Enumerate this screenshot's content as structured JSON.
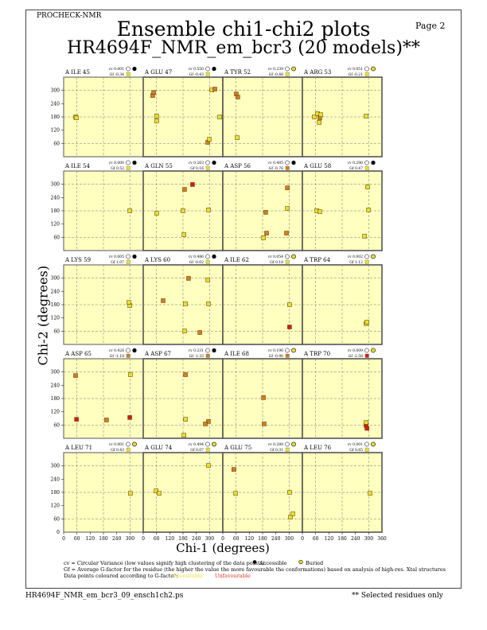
{
  "header": {
    "program": "PROCHECK-NMR",
    "page": "Page  2",
    "title": "Ensemble chi1-chi2 plots",
    "subtitle": "HR4694F_NMR_em_bcr3 (20 models)**"
  },
  "colors": {
    "panel_bg": "#ffffc0",
    "favourable": "#e8e030",
    "intermediate": "#d08020",
    "unfavourable": "#d02010",
    "grid": "#777777"
  },
  "chart_data": {
    "type": "scatter",
    "xlabel": "Chi-1 (degrees)",
    "ylabel": "Chi-2 (degrees)",
    "xlim": [
      0,
      360
    ],
    "ylim": [
      0,
      360
    ],
    "x_ticks": [
      0,
      60,
      120,
      180,
      240,
      300
    ],
    "x_tick_last": 360,
    "y_ticks": [
      60,
      120,
      180,
      240,
      300
    ],
    "y_tick_zero": 0,
    "grid": true,
    "panels": [
      {
        "label": "A ILE 45",
        "cv": "cv 0.001",
        "gf": "Gf -0.34",
        "gf_color": "y",
        "access": "acc",
        "pts": [
          [
            54,
            180,
            "y"
          ],
          [
            58,
            176,
            "y"
          ]
        ]
      },
      {
        "label": "A GLU 47",
        "cv": "cv 0.550",
        "gf": "Gf -0.43",
        "gf_color": "y",
        "access": "acc",
        "pts": [
          [
            43,
            277,
            "o"
          ],
          [
            47,
            291,
            "o"
          ],
          [
            61,
            184,
            "y"
          ],
          [
            61,
            162,
            "y"
          ],
          [
            310,
            302,
            "y"
          ],
          [
            324,
            306,
            "o"
          ],
          [
            346,
            180,
            "y"
          ],
          [
            292,
            65,
            "o"
          ],
          [
            299,
            79,
            "y"
          ]
        ]
      },
      {
        "label": "A TYR 52",
        "cv": "cv 0.239",
        "gf": "Gf -0.48",
        "gf_color": "y",
        "access": "bur",
        "pts": [
          [
            61,
            284,
            "o"
          ],
          [
            68,
            270,
            "o"
          ],
          [
            65,
            86,
            "y"
          ]
        ]
      },
      {
        "label": "A ARG 53",
        "cv": "cv 0.051",
        "gf": "Gf -0.21",
        "gf_color": "y",
        "access": "bur",
        "pts": [
          [
            54,
            180,
            "y"
          ],
          [
            68,
            195,
            "y"
          ],
          [
            79,
            176,
            "o"
          ],
          [
            76,
            155,
            "y"
          ],
          [
            83,
            190,
            "y"
          ],
          [
            288,
            184,
            "y"
          ]
        ]
      },
      {
        "label": "A ILE 54",
        "cv": "cv 0.000",
        "gf": "Gf 0.52",
        "gf_color": "y",
        "access": "acc",
        "pts": [
          [
            299,
            180,
            "y"
          ]
        ]
      },
      {
        "label": "A GLN 55",
        "cv": "cv 0.263",
        "gf": "Gf 0.16",
        "gf_color": "y",
        "access": "acc",
        "pts": [
          [
            61,
            169,
            "y"
          ],
          [
            180,
            180,
            "y"
          ],
          [
            187,
            277,
            "o"
          ],
          [
            223,
            299,
            "r"
          ],
          [
            295,
            184,
            "y"
          ],
          [
            184,
            72,
            "y"
          ]
        ]
      },
      {
        "label": "A ASP 56",
        "cv": "cv 0.485",
        "gf": "Gf -0.76",
        "gf_color": "o",
        "access": "acc",
        "pts": [
          [
            194,
            173,
            "o"
          ],
          [
            184,
            58,
            "y"
          ],
          [
            198,
            79,
            "o"
          ],
          [
            292,
            284,
            "o"
          ],
          [
            292,
            191,
            "y"
          ],
          [
            288,
            79,
            "o"
          ]
        ]
      },
      {
        "label": "A GLU 58",
        "cv": "cv 0.290",
        "gf": "Gf 0.47",
        "gf_color": "y",
        "access": "acc",
        "pts": [
          [
            65,
            180,
            "y"
          ],
          [
            79,
            176,
            "y"
          ],
          [
            295,
            288,
            "y"
          ],
          [
            299,
            184,
            "y"
          ],
          [
            281,
            65,
            "y"
          ]
        ]
      },
      {
        "label": "A LYS 59",
        "cv": "cv 0.005",
        "gf": "Gf 1.07",
        "gf_color": "y",
        "access": "acc",
        "pts": [
          [
            299,
            176,
            "y"
          ],
          [
            295,
            190,
            "y"
          ]
        ]
      },
      {
        "label": "A LYS 60",
        "cv": "cv 0.486",
        "gf": "Gf -0.02",
        "gf_color": "y",
        "access": "acc",
        "pts": [
          [
            90,
            198,
            "o"
          ],
          [
            191,
            184,
            "y"
          ],
          [
            205,
            299,
            "o"
          ],
          [
            292,
            292,
            "y"
          ],
          [
            295,
            184,
            "y"
          ],
          [
            187,
            61,
            "y"
          ],
          [
            256,
            54,
            "o"
          ]
        ]
      },
      {
        "label": "A ILE 62",
        "cv": "cv 0.054",
        "gf": "Gf 0.18",
        "gf_color": "y",
        "access": "bur",
        "pts": [
          [
            302,
            180,
            "y"
          ],
          [
            302,
            79,
            "r"
          ]
        ]
      },
      {
        "label": "A TRP 64",
        "cv": "cv 0.002",
        "gf": "Gf 1.12",
        "gf_color": "y",
        "access": "bur",
        "pts": [
          [
            288,
            94,
            "y"
          ],
          [
            292,
            101,
            "y"
          ]
        ]
      },
      {
        "label": "A ASP 65",
        "cv": "cv 0.428",
        "gf": "Gf -1.18",
        "gf_color": "o",
        "access": "acc",
        "pts": [
          [
            54,
            284,
            "o"
          ],
          [
            58,
            86,
            "r"
          ],
          [
            194,
            83,
            "o"
          ],
          [
            299,
            94,
            "r"
          ],
          [
            302,
            288,
            "y"
          ]
        ]
      },
      {
        "label": "A ASP 67",
        "cv": "cv 0.231",
        "gf": "Gf -1.33",
        "gf_color": "o",
        "access": "acc",
        "pts": [
          [
            191,
            288,
            "o"
          ],
          [
            191,
            86,
            "y"
          ],
          [
            184,
            14,
            "y"
          ],
          [
            295,
            76,
            "o"
          ],
          [
            281,
            65,
            "o"
          ]
        ]
      },
      {
        "label": "A ILE 68",
        "cv": "cv 0.196",
        "gf": "Gf -0.96",
        "gf_color": "o",
        "access": "bur",
        "pts": [
          [
            184,
            184,
            "o"
          ],
          [
            187,
            65,
            "o"
          ]
        ]
      },
      {
        "label": "A TRP 70",
        "cv": "cv 0.009",
        "gf": "Gf -2.58",
        "gf_color": "r",
        "access": "bur",
        "pts": [
          [
            288,
            58,
            "r"
          ],
          [
            288,
            72,
            "y"
          ],
          [
            292,
            45,
            "r"
          ]
        ]
      },
      {
        "label": "A LEU 71",
        "cv": "cv 0.001",
        "gf": "Gf 0.43",
        "gf_color": "y",
        "access": "bur",
        "pts": [
          [
            302,
            176,
            "y"
          ]
        ]
      },
      {
        "label": "A GLU 74",
        "cv": "cv 0.494",
        "gf": "Gf 0.07",
        "gf_color": "y",
        "access": "bur",
        "pts": [
          [
            58,
            187,
            "y"
          ],
          [
            72,
            176,
            "y"
          ],
          [
            295,
            302,
            "y"
          ]
        ]
      },
      {
        "label": "A GLU 75",
        "cv": "cv 0.288",
        "gf": "Gf 0.31",
        "gf_color": "y",
        "access": "bur",
        "pts": [
          [
            50,
            284,
            "o"
          ],
          [
            58,
            176,
            "y"
          ],
          [
            302,
            180,
            "y"
          ],
          [
            306,
            68,
            "y"
          ],
          [
            317,
            83,
            "y"
          ]
        ]
      },
      {
        "label": "A LEU 76",
        "cv": "cv 0.001",
        "gf": "Gf 0.65",
        "gf_color": "y",
        "access": "bur",
        "pts": [
          [
            306,
            176,
            "y"
          ]
        ]
      }
    ]
  },
  "legend": {
    "cv_line": "cv = Circular Variance (low values signify high clustering of the data points).",
    "accessible": "Accessible",
    "buried": "Buried",
    "gf_line": "Gf = Average G-factor for the residue (the higher the value the more favourable the conformations) based on analysis of high-res. Xtal structures",
    "colour_line": "Data points coloured according to G-factor:",
    "favourable": "Favourable",
    "unfavourable": "Unfavourable"
  },
  "footer": {
    "file": "HR4694F_NMR_em_bcr3_09_ensch1ch2.ps",
    "note": "** Selected residues only"
  }
}
